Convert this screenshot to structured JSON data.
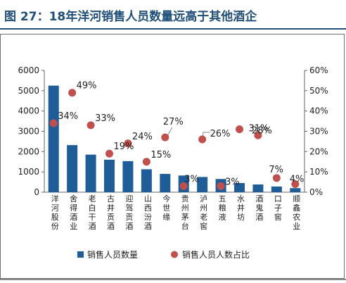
{
  "page": {
    "title": "图 27：18年洋河销售人员数量远高于其他酒企"
  },
  "colors": {
    "bar": "#1f5d99",
    "dot": "#c0504d",
    "title": "#1f4e79",
    "leader": "#888888"
  },
  "chart_data": {
    "type": "bar",
    "title": "",
    "categories": [
      "洋河股份",
      "舍得酒业",
      "老白干酒",
      "古井贡酒",
      "迎驾贡酒",
      "山西汾酒",
      "今世缘",
      "贵州茅台",
      "泸州老窖",
      "五粮液",
      "水井坊",
      "酒鬼酒",
      "口子窖",
      "顺鑫农业"
    ],
    "series": [
      {
        "name": "销售人员数量",
        "type": "bar",
        "axis": "left",
        "values": [
          5250,
          2320,
          1850,
          1600,
          1530,
          1130,
          900,
          820,
          750,
          650,
          450,
          380,
          280,
          200
        ]
      },
      {
        "name": "销售人员人数占比",
        "type": "scatter",
        "axis": "right",
        "values": [
          34,
          49,
          33,
          19,
          24,
          15,
          27,
          3,
          26,
          3,
          31,
          28,
          7,
          4
        ],
        "labels": [
          "34%",
          "49%",
          "33%",
          "19%",
          "24%",
          "15%",
          "27%",
          "3%",
          "26%",
          "3%",
          "31%",
          "28%",
          "7%",
          "4%"
        ]
      }
    ],
    "y_left": {
      "min": 0,
      "max": 6000,
      "ticks": [
        "0",
        "1000",
        "2000",
        "3000",
        "4000",
        "5000",
        "6000"
      ]
    },
    "y_right": {
      "min": 0,
      "max": 60,
      "ticks": [
        "0%",
        "10%",
        "20%",
        "30%",
        "40%",
        "50%",
        "60%"
      ]
    },
    "grid": false,
    "legend": {
      "position": "bottom",
      "items": [
        "销售人员数量",
        "销售人员人数占比"
      ]
    }
  }
}
